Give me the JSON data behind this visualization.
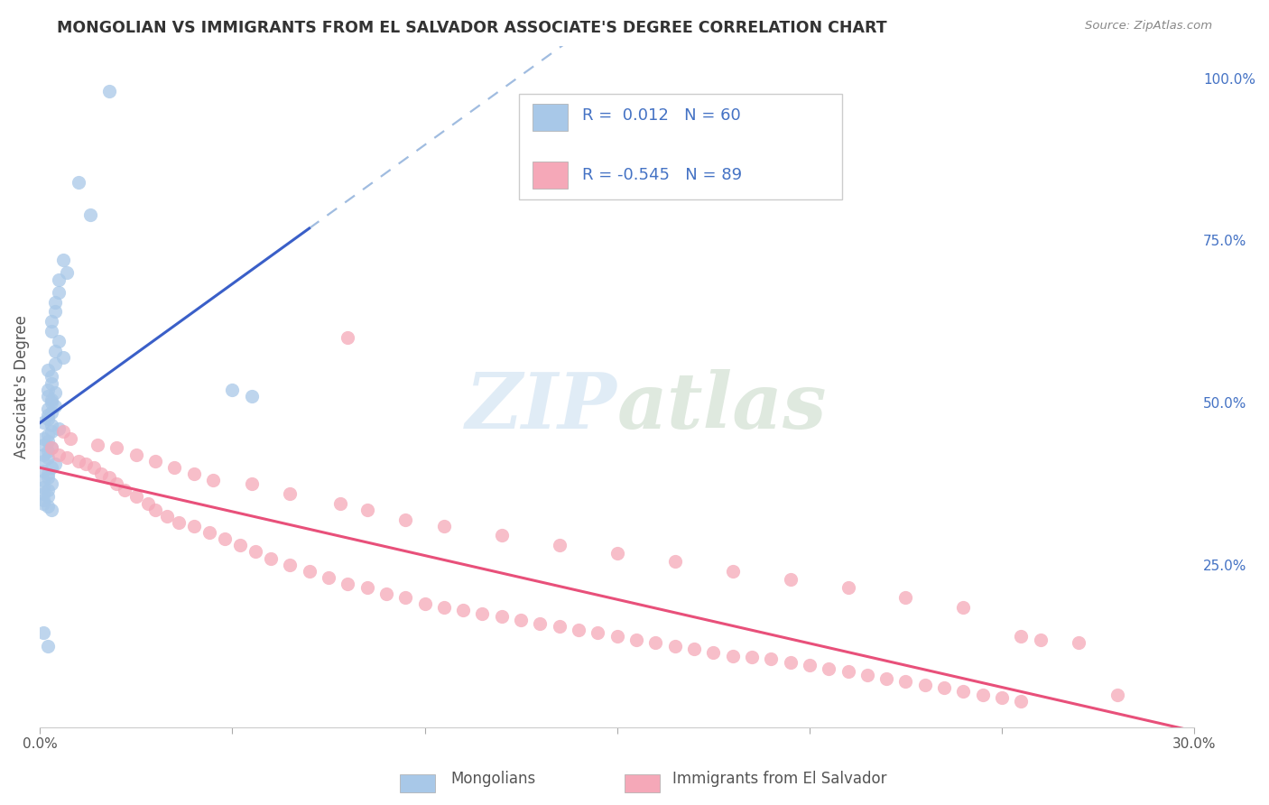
{
  "title": "MONGOLIAN VS IMMIGRANTS FROM EL SALVADOR ASSOCIATE'S DEGREE CORRELATION CHART",
  "source": "Source: ZipAtlas.com",
  "ylabel": "Associate's Degree",
  "xlim": [
    0.0,
    0.3
  ],
  "ylim": [
    0.0,
    1.05
  ],
  "mongolian_color": "#a8c8e8",
  "salvador_color": "#f5a8b8",
  "mongolian_line_color": "#3a5fc8",
  "salvador_line_color": "#e8507a",
  "mongolian_dashed_color": "#a0bce0",
  "watermark_color": "#c8ddf0",
  "right_ytick_color": "#4472c4",
  "legend_text_color": "#4472c4",
  "legend_r_color": "#000000",
  "mong_x": [
    0.018,
    0.01,
    0.013,
    0.006,
    0.007,
    0.005,
    0.005,
    0.004,
    0.004,
    0.003,
    0.003,
    0.005,
    0.004,
    0.006,
    0.004,
    0.002,
    0.003,
    0.003,
    0.002,
    0.004,
    0.002,
    0.003,
    0.003,
    0.004,
    0.002,
    0.003,
    0.002,
    0.002,
    0.001,
    0.003,
    0.005,
    0.003,
    0.002,
    0.001,
    0.002,
    0.001,
    0.003,
    0.002,
    0.001,
    0.002,
    0.001,
    0.004,
    0.003,
    0.001,
    0.002,
    0.002,
    0.001,
    0.003,
    0.001,
    0.002,
    0.05,
    0.055,
    0.001,
    0.002,
    0.001,
    0.001,
    0.002,
    0.003,
    0.001,
    0.002
  ],
  "mong_y": [
    0.98,
    0.84,
    0.79,
    0.72,
    0.7,
    0.69,
    0.67,
    0.655,
    0.64,
    0.625,
    0.61,
    0.595,
    0.58,
    0.57,
    0.56,
    0.55,
    0.54,
    0.53,
    0.52,
    0.515,
    0.51,
    0.505,
    0.5,
    0.495,
    0.49,
    0.485,
    0.48,
    0.475,
    0.47,
    0.465,
    0.46,
    0.455,
    0.45,
    0.445,
    0.44,
    0.435,
    0.43,
    0.425,
    0.42,
    0.415,
    0.41,
    0.405,
    0.4,
    0.395,
    0.39,
    0.385,
    0.38,
    0.375,
    0.37,
    0.365,
    0.52,
    0.51,
    0.36,
    0.355,
    0.35,
    0.345,
    0.34,
    0.335,
    0.145,
    0.125
  ],
  "salv_x": [
    0.003,
    0.005,
    0.007,
    0.01,
    0.012,
    0.014,
    0.016,
    0.018,
    0.02,
    0.022,
    0.025,
    0.028,
    0.03,
    0.033,
    0.036,
    0.04,
    0.044,
    0.048,
    0.052,
    0.056,
    0.06,
    0.065,
    0.07,
    0.075,
    0.08,
    0.085,
    0.09,
    0.095,
    0.1,
    0.105,
    0.11,
    0.115,
    0.12,
    0.125,
    0.13,
    0.135,
    0.14,
    0.145,
    0.15,
    0.155,
    0.16,
    0.165,
    0.17,
    0.175,
    0.18,
    0.185,
    0.19,
    0.195,
    0.2,
    0.205,
    0.21,
    0.215,
    0.22,
    0.225,
    0.23,
    0.235,
    0.24,
    0.245,
    0.25,
    0.255,
    0.006,
    0.008,
    0.015,
    0.02,
    0.025,
    0.03,
    0.035,
    0.04,
    0.055,
    0.065,
    0.078,
    0.085,
    0.095,
    0.105,
    0.12,
    0.135,
    0.15,
    0.165,
    0.18,
    0.195,
    0.21,
    0.225,
    0.24,
    0.08,
    0.255,
    0.26,
    0.27,
    0.28,
    0.045
  ],
  "salv_y": [
    0.43,
    0.42,
    0.415,
    0.41,
    0.405,
    0.4,
    0.39,
    0.385,
    0.375,
    0.365,
    0.355,
    0.345,
    0.335,
    0.325,
    0.315,
    0.31,
    0.3,
    0.29,
    0.28,
    0.27,
    0.26,
    0.25,
    0.24,
    0.23,
    0.22,
    0.215,
    0.205,
    0.2,
    0.19,
    0.185,
    0.18,
    0.175,
    0.17,
    0.165,
    0.16,
    0.155,
    0.15,
    0.145,
    0.14,
    0.135,
    0.13,
    0.125,
    0.12,
    0.115,
    0.11,
    0.108,
    0.105,
    0.1,
    0.095,
    0.09,
    0.085,
    0.08,
    0.075,
    0.07,
    0.065,
    0.06,
    0.055,
    0.05,
    0.045,
    0.04,
    0.455,
    0.445,
    0.435,
    0.43,
    0.42,
    0.41,
    0.4,
    0.39,
    0.375,
    0.36,
    0.345,
    0.335,
    0.32,
    0.31,
    0.295,
    0.28,
    0.268,
    0.255,
    0.24,
    0.228,
    0.215,
    0.2,
    0.185,
    0.6,
    0.14,
    0.135,
    0.13,
    0.05,
    0.38
  ]
}
